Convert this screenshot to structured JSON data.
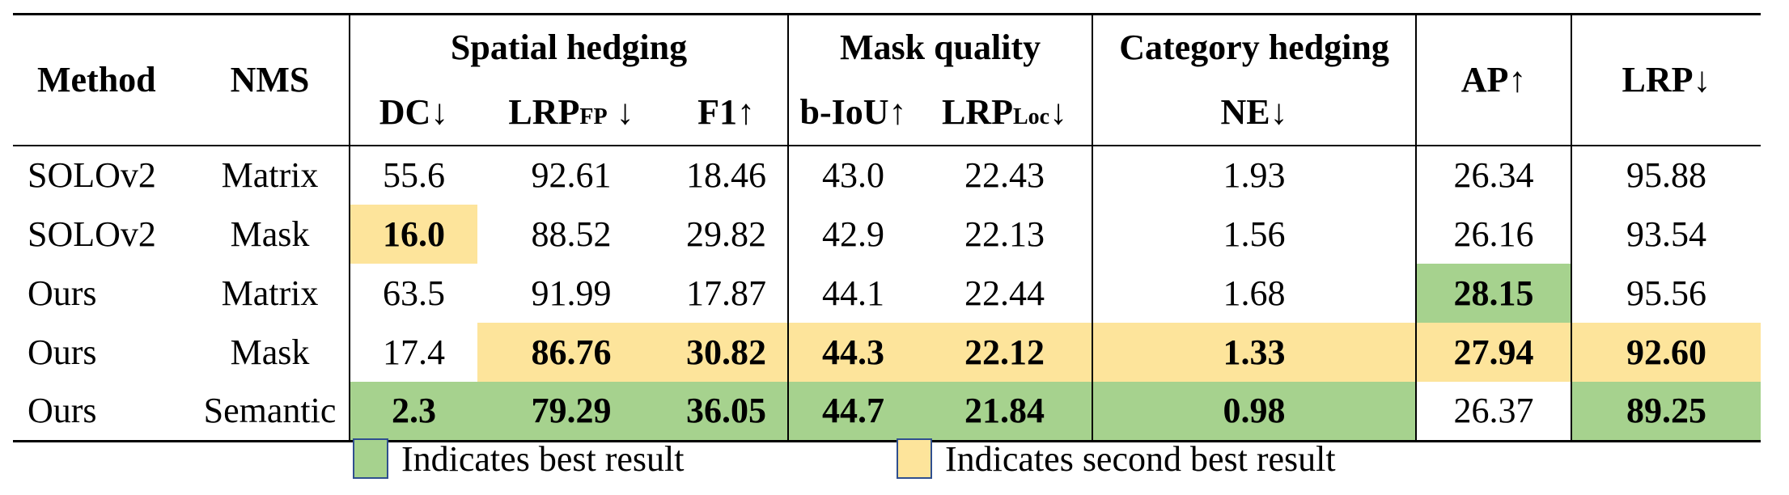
{
  "header": {
    "method": "Method",
    "nms": "NMS",
    "group_spatial": "Spatial hedging",
    "group_mask": "Mask quality",
    "group_category": "Category hedging",
    "ap": "AP↑",
    "lrp": "LRP↓",
    "dc": "DC↓",
    "lrpfp_main": "LRP",
    "lrpfp_sub": "FP",
    "lrpfp_arrow": " ↓",
    "f1": "F1↑",
    "biou": "b-IoU↑",
    "lrploc_main": "LRP",
    "lrploc_sub": "Loc",
    "lrploc_arrow": "↓",
    "ne": "NE↓"
  },
  "rows": [
    {
      "method": "SOLOv2",
      "nms": "Matrix",
      "dc": "55.6",
      "lrpfp": "92.61",
      "f1": "18.46",
      "biou": "43.0",
      "lrploc": "22.43",
      "ne": "1.93",
      "ap": "26.34",
      "lrp": "95.88"
    },
    {
      "method": "SOLOv2",
      "nms": "Mask",
      "dc": "16.0",
      "lrpfp": "88.52",
      "f1": "29.82",
      "biou": "42.9",
      "lrploc": "22.13",
      "ne": "1.56",
      "ap": "26.16",
      "lrp": "93.54"
    },
    {
      "method": "Ours",
      "nms": "Matrix",
      "dc": "63.5",
      "lrpfp": "91.99",
      "f1": "17.87",
      "biou": "44.1",
      "lrploc": "22.44",
      "ne": "1.68",
      "ap": "28.15",
      "lrp": "95.56"
    },
    {
      "method": "Ours",
      "nms": "Mask",
      "dc": "17.4",
      "lrpfp": "86.76",
      "f1": "30.82",
      "biou": "44.3",
      "lrploc": "22.12",
      "ne": "1.33",
      "ap": "27.94",
      "lrp": "92.60"
    },
    {
      "method": "Ours",
      "nms": "Semantic",
      "dc": "2.3",
      "lrpfp": "79.29",
      "f1": "36.05",
      "biou": "44.7",
      "lrploc": "21.84",
      "ne": "0.98",
      "ap": "26.37",
      "lrp": "89.25"
    }
  ],
  "legend": {
    "best_label": "Indicates best result",
    "second_label": "Indicates second best result",
    "best_color": "#a6d28e",
    "second_color": "#fde49b"
  }
}
